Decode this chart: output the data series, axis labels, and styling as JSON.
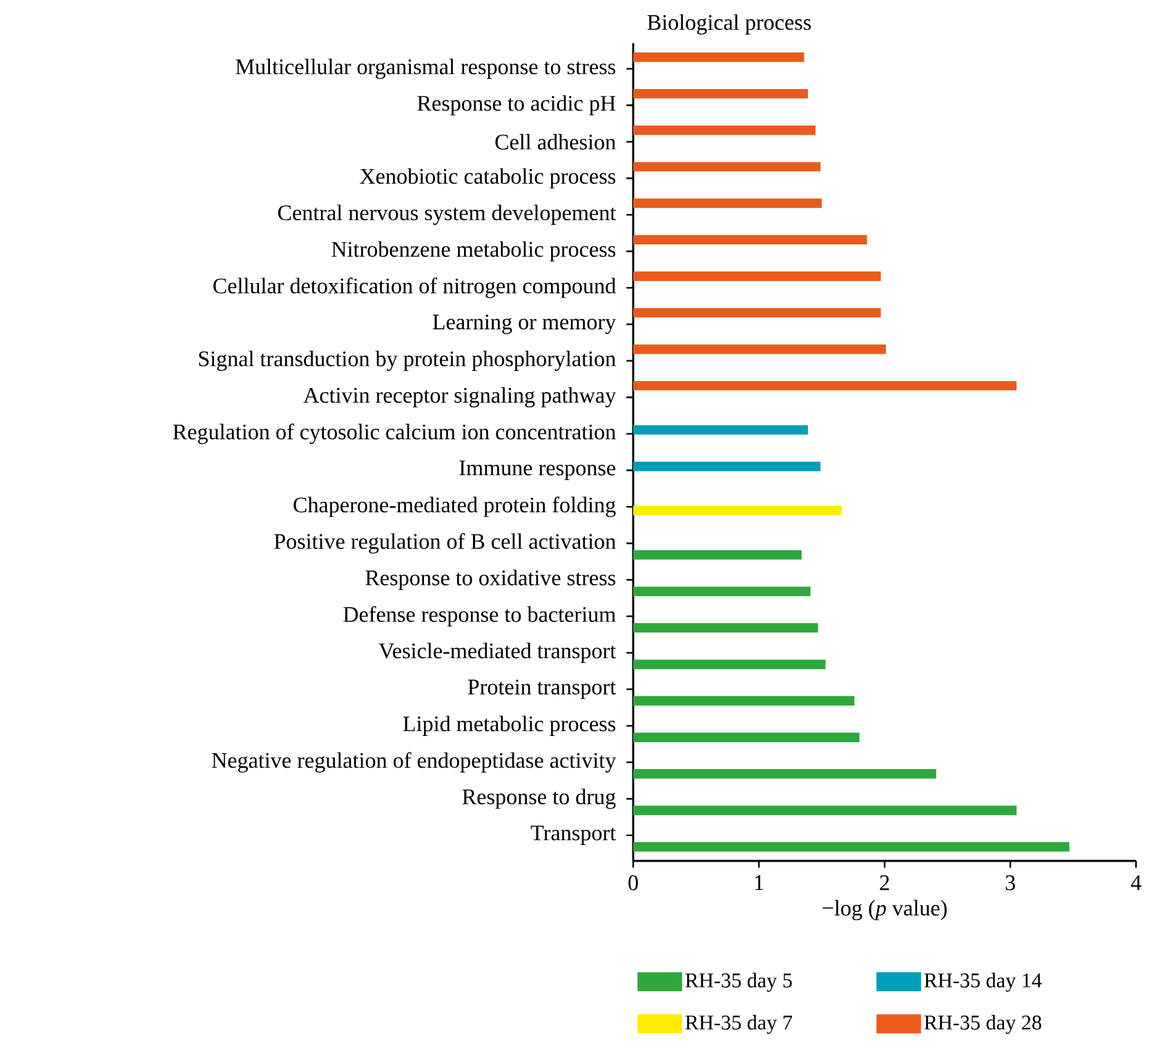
{
  "chart_data": {
    "type": "bar",
    "orientation": "horizontal",
    "title": "Biological process",
    "xlabel": "−log (*p* value)",
    "categories": [
      "Multicellular organismal response to stress",
      "Response to acidic pH",
      "Cell adhesion",
      "Xenobiotic catabolic process",
      "Central nervous system developement",
      "Nitrobenzene metabolic process",
      "Cellular detoxification of nitrogen compound",
      "Learning or memory",
      "Signal transduction by protein phosphorylation",
      "Activin receptor signaling pathway",
      "Regulation of cytosolic calcium ion concentration",
      "Immune response",
      "Chaperone-mediated protein folding",
      "Positive regulation of B cell activation",
      "Response to oxidative stress",
      "Defense response to bacterium",
      "Vesicle-mediated transport",
      "Protein transport",
      "Lipid metabolic process",
      "Negative regulation of endopeptidase activity",
      "Response to drug",
      "Transport"
    ],
    "series": [
      {
        "name": "RH-35 day 5",
        "color": "#2ea83b",
        "values": [
          null,
          null,
          null,
          null,
          null,
          null,
          null,
          null,
          null,
          null,
          null,
          null,
          null,
          1.34,
          1.41,
          1.47,
          1.53,
          1.76,
          1.8,
          2.41,
          3.05,
          3.47
        ]
      },
      {
        "name": "RH-35 day 7",
        "color": "#ffed00",
        "values": [
          null,
          null,
          null,
          null,
          null,
          null,
          null,
          null,
          null,
          null,
          null,
          null,
          1.66,
          null,
          null,
          null,
          null,
          null,
          null,
          null,
          null,
          null
        ]
      },
      {
        "name": "RH-35 day 14",
        "color": "#009db8",
        "values": [
          null,
          null,
          null,
          null,
          null,
          null,
          null,
          null,
          null,
          null,
          1.39,
          1.49,
          null,
          null,
          null,
          null,
          null,
          null,
          null,
          null,
          null,
          null
        ]
      },
      {
        "name": "RH-35 day 28",
        "color": "#e95b1c",
        "values": [
          1.36,
          1.39,
          1.45,
          1.49,
          1.5,
          1.86,
          1.97,
          1.97,
          2.01,
          3.05,
          null,
          null,
          null,
          null,
          null,
          null,
          null,
          null,
          null,
          null,
          null,
          null
        ]
      }
    ],
    "xlim": [
      0,
      4
    ],
    "xticks": [
      0,
      1,
      2,
      3,
      4
    ],
    "legend": "bottom"
  }
}
